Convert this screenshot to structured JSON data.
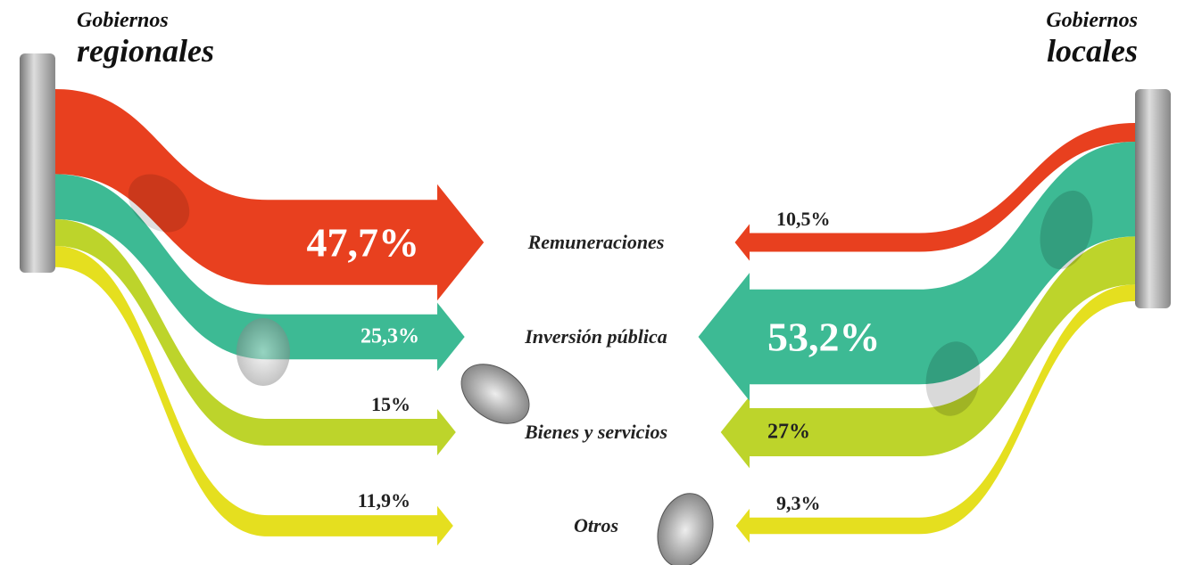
{
  "chart_data": {
    "type": "sankey",
    "categories": [
      "Remuneraciones",
      "Inversión pública",
      "Bienes y servicios",
      "Otros"
    ],
    "colors": [
      "#e8401f",
      "#3dba94",
      "#bdd42b",
      "#e5df1f"
    ],
    "series": [
      {
        "name": "Gobiernos regionales",
        "values": [
          47.7,
          25.3,
          15,
          11.9
        ],
        "value_labels": [
          "47,7%",
          "25,3%",
          "15%",
          "11,9%"
        ]
      },
      {
        "name": "Gobiernos locales",
        "values": [
          10.5,
          53.2,
          27,
          9.3
        ],
        "value_labels": [
          "10,5%",
          "53,2%",
          "27%",
          "9,3%"
        ]
      }
    ]
  }
}
